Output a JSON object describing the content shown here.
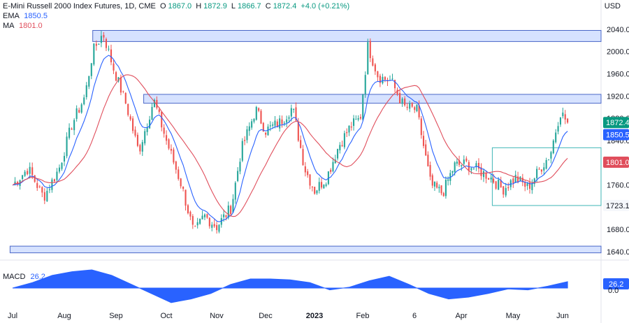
{
  "header": {
    "symbol_line": "E-Mini Russell 2000 Index Futures, 1D, CME",
    "o_label": "O",
    "o": "1867.0",
    "h_label": "H",
    "h": "1872.9",
    "l_label": "L",
    "l": "1866.7",
    "c_label": "C",
    "c": "1872.4",
    "change": "+4.0 (+0.21%)",
    "ema_label": "EMA",
    "ema": "1850.5",
    "ma_label": "MA",
    "ma": "1801.0",
    "currency": "USD"
  },
  "macd": {
    "label": "MACD",
    "value": "26.2"
  },
  "colors": {
    "up": "#26a69a",
    "down": "#ef5350",
    "ema": "#2962ff",
    "ma": "#e04e5c",
    "zone_fill": "#d6e2ff",
    "zone_stroke": "#4a67c7",
    "macd": "#2962ff",
    "support": "#3fb6b6"
  },
  "chart_data": [
    {
      "type": "candlestick",
      "x_ticks": [
        "Jul",
        "Aug",
        "Sep",
        "Oct",
        "Nov",
        "Dec",
        "2023",
        "Feb",
        "6",
        "Apr",
        "May",
        "Jun"
      ],
      "y_ticks": [
        2040.0,
        2000.0,
        1960.0,
        1920.0,
        1880.0,
        1840.0,
        1800.0,
        1760.0,
        1720.0,
        1680.0,
        1640.0
      ],
      "ylim": [
        1630,
        2060
      ],
      "price_labels": [
        {
          "value": 1872.4,
          "text": "1872.4",
          "color": "#089981"
        },
        {
          "value": 1850.5,
          "text": "1850.5",
          "color": "#2962ff"
        },
        {
          "value": 1801.0,
          "text": "1801.0",
          "color": "#e04e5c"
        },
        {
          "value": 1723.1,
          "text": "1723.1",
          "color": "#ffffff"
        }
      ],
      "zones": [
        {
          "from_month": 1.55,
          "to_month": 11.85,
          "low": 2018,
          "high": 2038
        },
        {
          "from_month": 2.55,
          "to_month": 11.85,
          "low": 1907,
          "high": 1923
        },
        {
          "from_month": -0.05,
          "to_month": 11.85,
          "low": 1638,
          "high": 1650
        }
      ],
      "support_rect": {
        "from_month": 9.6,
        "to_month": 11.85,
        "low": 1723.1,
        "high": 1827
      },
      "anchors": [
        [
          0.0,
          1760
        ],
        [
          0.3,
          1790
        ],
        [
          0.6,
          1738
        ],
        [
          0.9,
          1790
        ],
        [
          1.15,
          1870
        ],
        [
          1.4,
          1920
        ],
        [
          1.55,
          2000
        ],
        [
          1.75,
          2033
        ],
        [
          1.95,
          1970
        ],
        [
          2.2,
          1905
        ],
        [
          2.45,
          1820
        ],
        [
          2.75,
          1913
        ],
        [
          3.0,
          1840
        ],
        [
          3.3,
          1760
        ],
        [
          3.55,
          1672
        ],
        [
          3.75,
          1705
        ],
        [
          4.0,
          1685
        ],
        [
          4.3,
          1720
        ],
        [
          4.5,
          1822
        ],
        [
          4.8,
          1896
        ],
        [
          5.0,
          1858
        ],
        [
          5.3,
          1873
        ],
        [
          5.55,
          1900
        ],
        [
          5.8,
          1790
        ],
        [
          6.0,
          1750
        ],
        [
          6.25,
          1773
        ],
        [
          6.5,
          1830
        ],
        [
          6.75,
          1866
        ],
        [
          6.95,
          1880
        ],
        [
          7.1,
          2010
        ],
        [
          7.3,
          1955
        ],
        [
          7.55,
          1947
        ],
        [
          7.8,
          1900
        ],
        [
          8.05,
          1895
        ],
        [
          8.35,
          1760
        ],
        [
          8.6,
          1745
        ],
        [
          8.85,
          1795
        ],
        [
          9.1,
          1798
        ],
        [
          9.3,
          1788
        ],
        [
          9.55,
          1775
        ],
        [
          9.8,
          1752
        ],
        [
          10.05,
          1773
        ],
        [
          10.3,
          1755
        ],
        [
          10.55,
          1790
        ],
        [
          10.75,
          1815
        ],
        [
          10.95,
          1892
        ],
        [
          11.1,
          1872.4
        ]
      ],
      "ema_last": 1850.5,
      "ma_last": 1801.0
    },
    {
      "type": "area",
      "name": "MACD",
      "values": [
        0,
        0.3,
        0.7,
        0.9,
        1.0,
        0.7,
        0.2,
        -0.3,
        -0.8,
        -0.6,
        -0.3,
        0.2,
        0.5,
        0.5,
        0.45,
        0.3,
        -0.1,
        0.05,
        0.4,
        0.65,
        0.2,
        -0.3,
        -0.6,
        -0.5,
        -0.3,
        -0.05,
        -0.1,
        0.1,
        0.35
      ],
      "last": 26.2,
      "y_ticks": [
        0.0
      ]
    }
  ]
}
